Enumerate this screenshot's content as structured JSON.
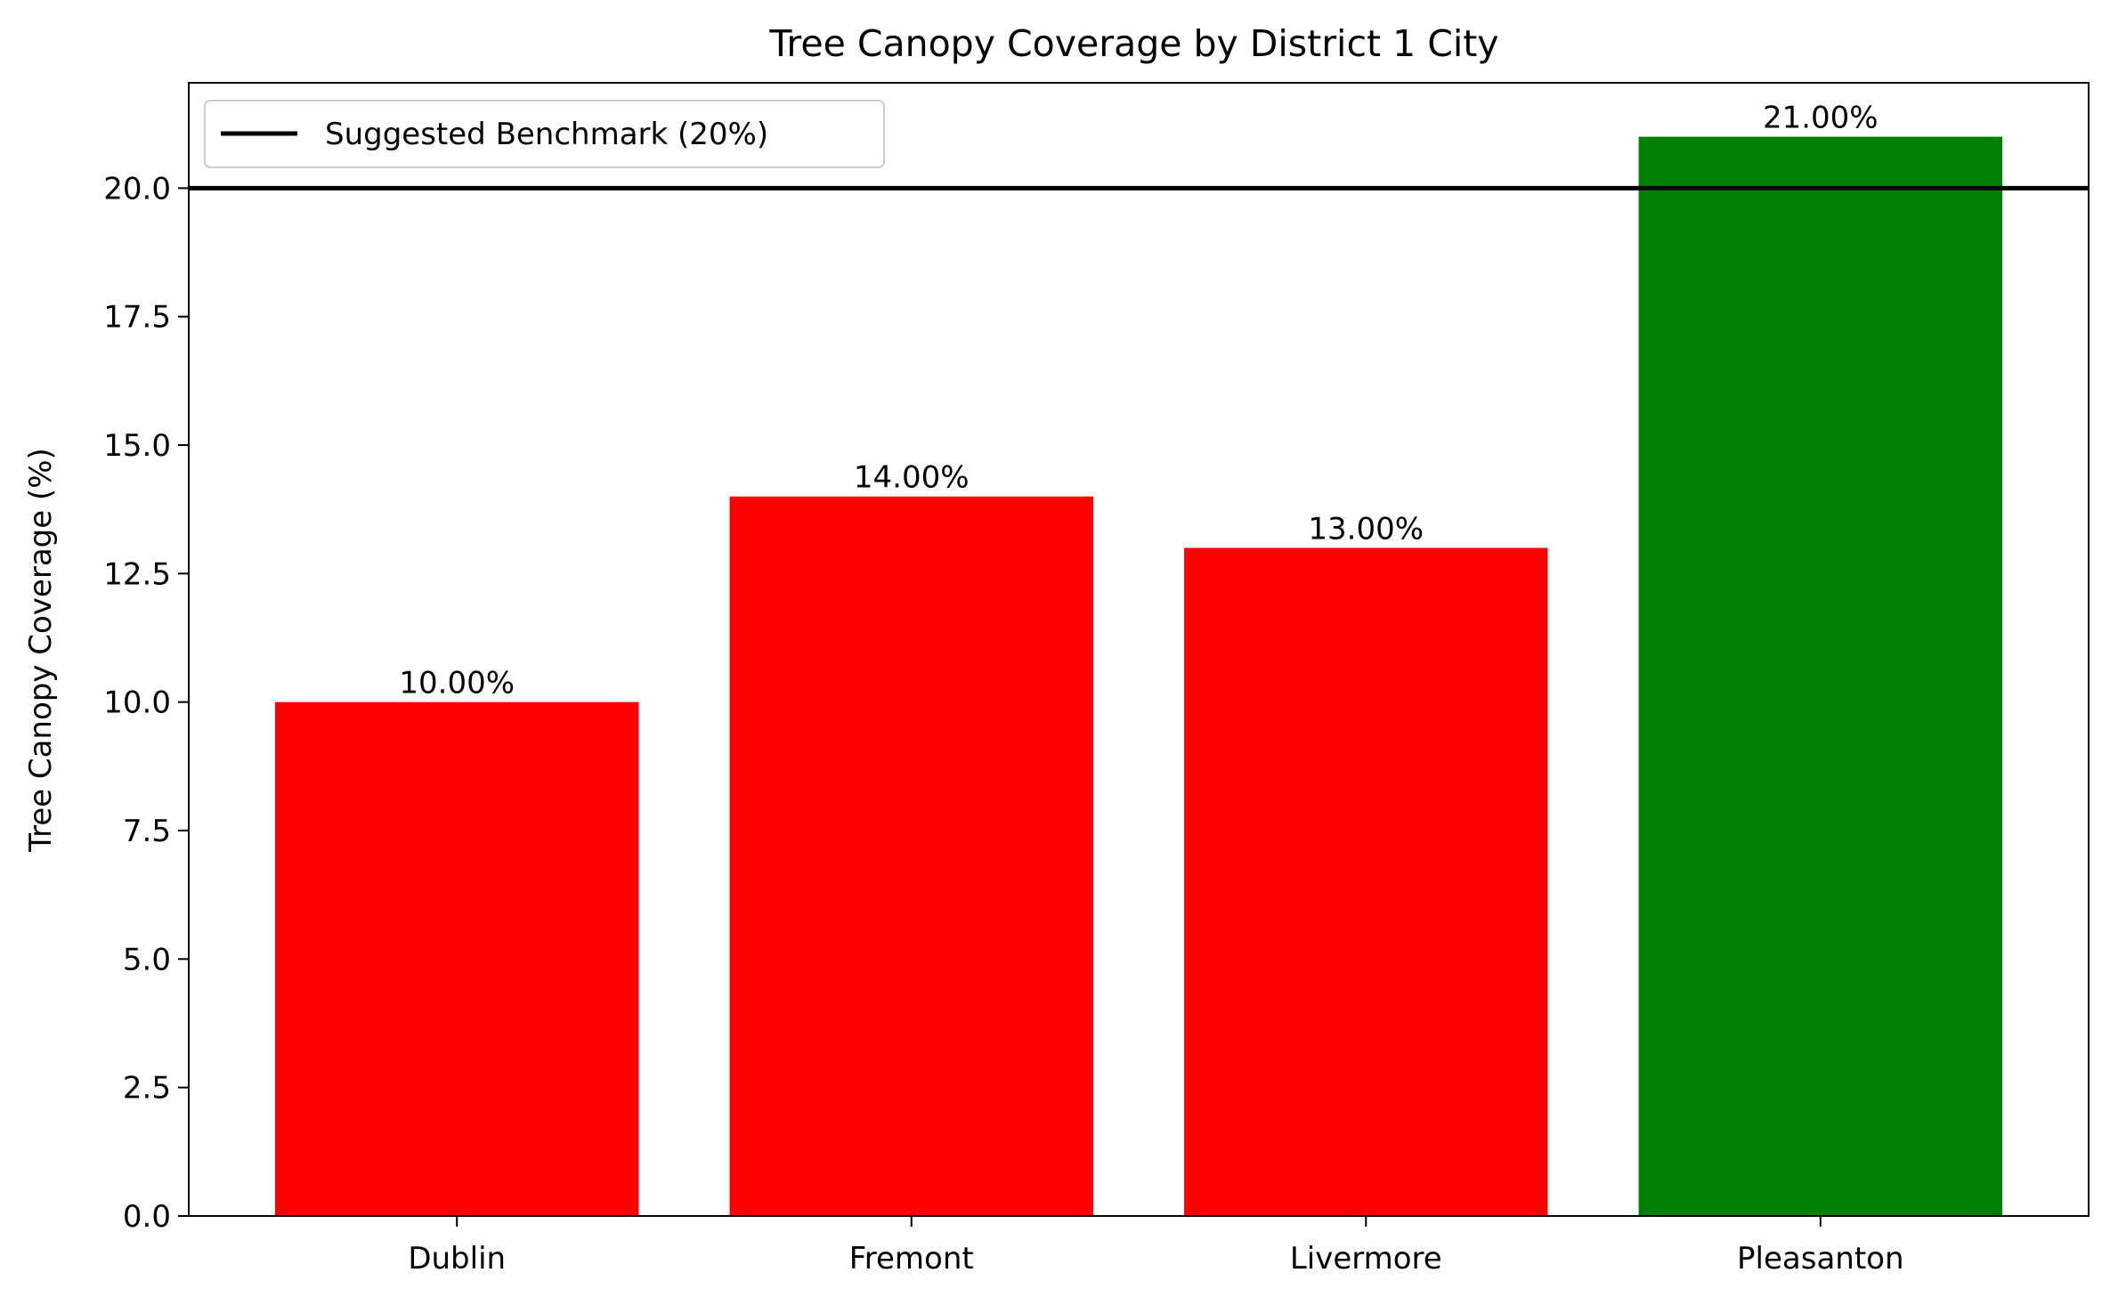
{
  "chart_data": {
    "type": "bar",
    "title": "Tree Canopy Coverage by District 1 City",
    "xlabel": "",
    "ylabel": "Tree Canopy Coverage (%)",
    "categories": [
      "Dublin",
      "Fremont",
      "Livermore",
      "Pleasanton"
    ],
    "values": [
      10,
      14,
      13,
      21
    ],
    "value_labels": [
      "10.00%",
      "14.00%",
      "13.00%",
      "21.00%"
    ],
    "bar_colors": [
      "#ff0000",
      "#ff0000",
      "#ff0000",
      "#008000"
    ],
    "ylim": [
      0,
      22.05
    ],
    "yticks": [
      0,
      2.5,
      5,
      7.5,
      10,
      12.5,
      15,
      17.5,
      20
    ],
    "ytick_labels": [
      "0.0",
      "2.5",
      "5.0",
      "7.5",
      "10.0",
      "12.5",
      "15.0",
      "17.5",
      "20.0"
    ],
    "reference_line": {
      "value": 20,
      "color": "#000000",
      "label": "Suggested Benchmark (20%)"
    },
    "legend": {
      "position": "top-left",
      "entries": [
        "Suggested Benchmark (20%)"
      ]
    },
    "grid": false
  }
}
